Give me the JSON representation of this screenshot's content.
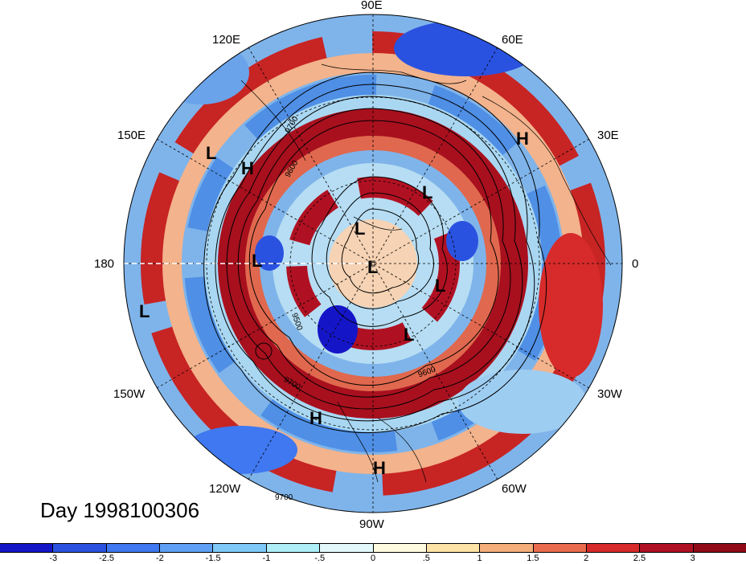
{
  "map": {
    "projection": "north-polar-stereographic",
    "longitude_labels": [
      "90E",
      "60E",
      "30E",
      "0",
      "30W",
      "60W",
      "90W",
      "120W",
      "150W",
      "180",
      "150E",
      "120E"
    ],
    "contour_labels": [
      "9700",
      "9600",
      "9500",
      "9700",
      "9600",
      "9700"
    ],
    "pressure_systems": [
      {
        "type": "H",
        "label": "H"
      },
      {
        "type": "L",
        "label": "L"
      },
      {
        "type": "H",
        "label": "H"
      },
      {
        "type": "L",
        "label": "L"
      },
      {
        "type": "L",
        "label": "L"
      },
      {
        "type": "L",
        "label": "L"
      },
      {
        "type": "L",
        "label": "L"
      },
      {
        "type": "L",
        "label": "L"
      },
      {
        "type": "L",
        "label": "L"
      },
      {
        "type": "L",
        "label": "L"
      },
      {
        "type": "L",
        "label": "L"
      },
      {
        "type": "H",
        "label": "H"
      },
      {
        "type": "H",
        "label": "H"
      }
    ]
  },
  "day_label": "Day 1998100306",
  "colorbar": {
    "ticks": [
      "-3",
      "-2.5",
      "-2",
      "-1.5",
      "-1",
      "-.5",
      "0",
      ".5",
      "1",
      "1.5",
      "2",
      "2.5",
      "3"
    ],
    "colors": [
      "#1515c8",
      "#2a52e0",
      "#3f78f0",
      "#5ea0f5",
      "#7ec9f7",
      "#aeeef7",
      "#e2f8fa",
      "#fffbe0",
      "#fde3a6",
      "#f5ae7a",
      "#eb6b4e",
      "#d72a2a",
      "#b01122",
      "#900a18"
    ]
  }
}
